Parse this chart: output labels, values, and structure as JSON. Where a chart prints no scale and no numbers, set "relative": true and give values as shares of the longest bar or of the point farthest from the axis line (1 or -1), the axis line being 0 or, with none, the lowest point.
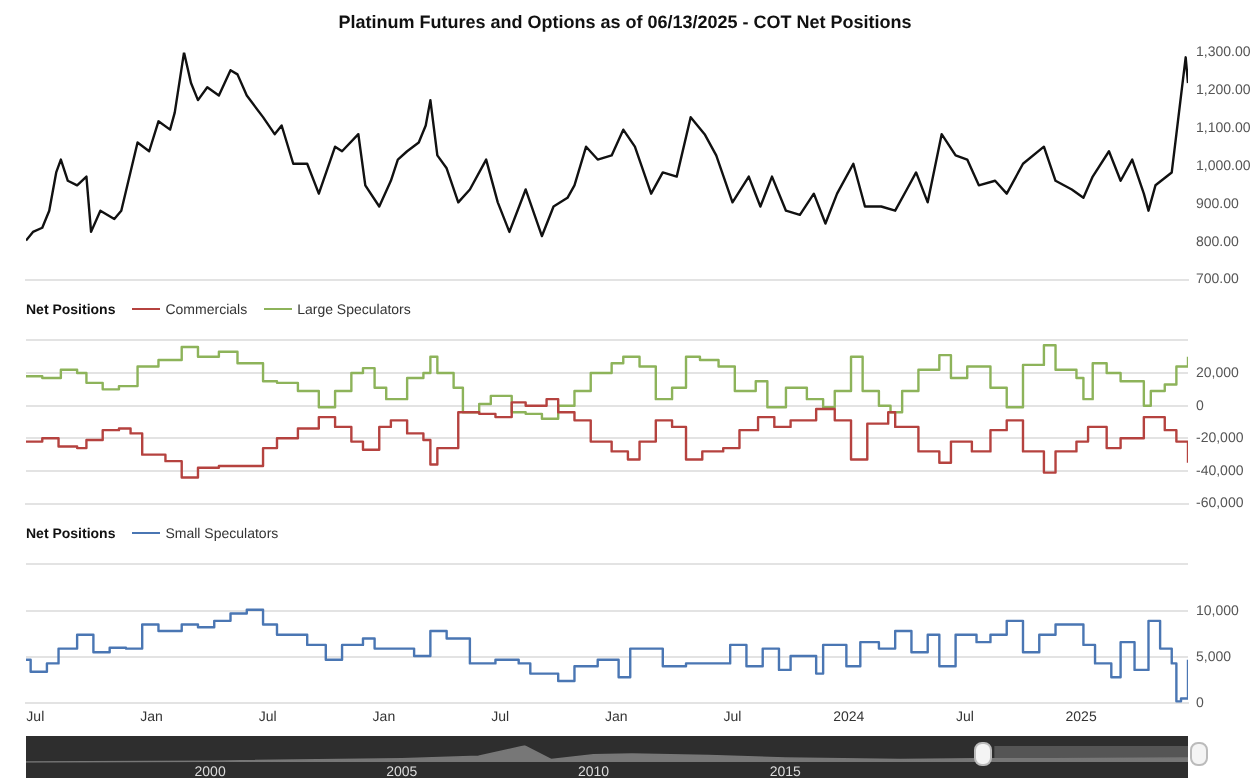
{
  "chart_data": [
    {
      "type": "line",
      "title": "Platinum Futures and Options as of 06/13/2025 - COT Net Positions",
      "color": "#111111",
      "x": [
        2020.46,
        2020.49,
        2020.53,
        2020.56,
        2020.59,
        2020.61,
        2020.64,
        2020.68,
        2020.72,
        2020.74,
        2020.78,
        2020.84,
        2020.87,
        2020.94,
        2020.99,
        2021.03,
        2021.08,
        2021.1,
        2021.14,
        2021.17,
        2021.2,
        2021.24,
        2021.29,
        2021.34,
        2021.37,
        2021.41,
        2021.48,
        2021.53,
        2021.56,
        2021.61,
        2021.67,
        2021.72,
        2021.79,
        2021.82,
        2021.89,
        2021.92,
        2021.98,
        2022.03,
        2022.06,
        2022.1,
        2022.15,
        2022.18,
        2022.2,
        2022.23,
        2022.27,
        2022.32,
        2022.37,
        2022.44,
        2022.49,
        2022.54,
        2022.61,
        2022.68,
        2022.73,
        2022.79,
        2022.82,
        2022.87,
        2022.92,
        2022.98,
        2023.03,
        2023.08,
        2023.15,
        2023.2,
        2023.26,
        2023.32,
        2023.38,
        2023.43,
        2023.5,
        2023.57,
        2023.62,
        2023.67,
        2023.73,
        2023.79,
        2023.85,
        2023.9,
        2023.95,
        2024.02,
        2024.07,
        2024.14,
        2024.2,
        2024.25,
        2024.29,
        2024.34,
        2024.4,
        2024.46,
        2024.51,
        2024.56,
        2024.63,
        2024.68,
        2024.75,
        2024.84,
        2024.89,
        2024.96,
        2025.01,
        2025.05,
        2025.12,
        2025.17,
        2025.22,
        2025.27,
        2025.29,
        2025.32,
        2025.39,
        2025.41,
        2025.43,
        2025.45,
        2025.46
      ],
      "values": [
        803,
        826,
        837,
        882,
        983,
        1017,
        961,
        949,
        972,
        826,
        882,
        860,
        882,
        1062,
        1039,
        1118,
        1096,
        1141,
        1300,
        1219,
        1174,
        1208,
        1186,
        1253,
        1242,
        1186,
        1129,
        1084,
        1107,
        1006,
        1006,
        927,
        1051,
        1039,
        1084,
        949,
        893,
        961,
        1017,
        1039,
        1062,
        1107,
        1174,
        1028,
        994,
        904,
        938,
        1017,
        904,
        826,
        938,
        815,
        893,
        916,
        949,
        1051,
        1017,
        1028,
        1096,
        1051,
        927,
        983,
        972,
        1129,
        1084,
        1028,
        904,
        972,
        893,
        972,
        882,
        871,
        927,
        848,
        927,
        1006,
        893,
        893,
        882,
        938,
        983,
        904,
        1084,
        1028,
        1017,
        949,
        961,
        927,
        1006,
        1051,
        961,
        938,
        916,
        972,
        1039,
        961,
        1017,
        927,
        882,
        949,
        983,
        1084,
        1186,
        1287,
        1219
      ],
      "xlim": [
        2020.46,
        2025.46
      ],
      "ylim": [
        700,
        1300
      ],
      "yticks": [
        {
          "value": 700,
          "label": "700.00"
        },
        {
          "value": 800,
          "label": "800.00"
        },
        {
          "value": 900,
          "label": "900.00"
        },
        {
          "value": 1000,
          "label": "1,000.00"
        },
        {
          "value": 1100,
          "label": "1,100.00"
        },
        {
          "value": 1200,
          "label": "1,200.00"
        },
        {
          "value": 1300,
          "label": "1,300.00"
        }
      ],
      "tick_labels": "y"
    },
    {
      "type": "step",
      "legend_title": "Net Positions",
      "legend": "top left",
      "grid": "y",
      "tick_labels": "y",
      "xlim": [
        2020.46,
        2025.46
      ],
      "ylim": [
        -60000,
        40000
      ],
      "yticks": [
        {
          "value": -60000,
          "label": "-60,000"
        },
        {
          "value": -40000,
          "label": "-40,000"
        },
        {
          "value": -20000,
          "label": "-20,000"
        },
        {
          "value": 0,
          "label": "0"
        },
        {
          "value": 20000,
          "label": "20,000"
        },
        {
          "value": 40000,
          "label": null
        }
      ],
      "series": [
        {
          "name": "Commercials",
          "color": "#b5423f",
          "x": [
            2020.46,
            2020.53,
            2020.6,
            2020.68,
            2020.72,
            2020.79,
            2020.86,
            2020.91,
            2020.96,
            2021.06,
            2021.13,
            2021.2,
            2021.29,
            2021.37,
            2021.48,
            2021.54,
            2021.63,
            2021.72,
            2021.79,
            2021.86,
            2021.91,
            2021.98,
            2022.03,
            2022.1,
            2022.17,
            2022.2,
            2022.23,
            2022.32,
            2022.41,
            2022.48,
            2022.55,
            2022.61,
            2022.7,
            2022.75,
            2022.82,
            2022.89,
            2022.98,
            2023.05,
            2023.1,
            2023.17,
            2023.24,
            2023.3,
            2023.37,
            2023.46,
            2023.53,
            2023.61,
            2023.68,
            2023.75,
            2023.86,
            2023.94,
            2024.01,
            2024.08,
            2024.17,
            2024.2,
            2024.3,
            2024.39,
            2024.44,
            2024.53,
            2024.61,
            2024.68,
            2024.75,
            2024.84,
            2024.89,
            2024.98,
            2025.03,
            2025.11,
            2025.17,
            2025.27,
            2025.36,
            2025.41,
            2025.46
          ],
          "values": [
            -22000,
            -20000,
            -25000,
            -26000,
            -21000,
            -15000,
            -14000,
            -17000,
            -30000,
            -34000,
            -44000,
            -38000,
            -37000,
            -37000,
            -26000,
            -20000,
            -14000,
            -7000,
            -13000,
            -22000,
            -27000,
            -13000,
            -9000,
            -17000,
            -21000,
            -36000,
            -26000,
            -4000,
            -5000,
            -7000,
            2000,
            0,
            4000,
            -4000,
            -9000,
            -22000,
            -28000,
            -33000,
            -22000,
            -9000,
            -13000,
            -33000,
            -28000,
            -26000,
            -15000,
            -7000,
            -13000,
            -9000,
            -2000,
            -9000,
            -33000,
            -11000,
            -4000,
            -13000,
            -28000,
            -35000,
            -22000,
            -28000,
            -15000,
            -9000,
            -28000,
            -41000,
            -28000,
            -22000,
            -13000,
            -26000,
            -20000,
            -7000,
            -15000,
            -22000,
            -35000
          ]
        },
        {
          "name": "Large Speculators",
          "color": "#8db35a",
          "x": [
            2020.46,
            2020.53,
            2020.61,
            2020.68,
            2020.72,
            2020.79,
            2020.86,
            2020.94,
            2021.03,
            2021.13,
            2021.2,
            2021.29,
            2021.37,
            2021.48,
            2021.54,
            2021.63,
            2021.72,
            2021.79,
            2021.86,
            2021.91,
            2021.96,
            2022.01,
            2022.1,
            2022.17,
            2022.2,
            2022.23,
            2022.3,
            2022.34,
            2022.41,
            2022.46,
            2022.55,
            2022.61,
            2022.68,
            2022.75,
            2022.82,
            2022.89,
            2022.98,
            2023.03,
            2023.1,
            2023.17,
            2023.24,
            2023.3,
            2023.36,
            2023.44,
            2023.51,
            2023.6,
            2023.65,
            2023.73,
            2023.82,
            2023.89,
            2023.94,
            2024.01,
            2024.06,
            2024.13,
            2024.18,
            2024.23,
            2024.3,
            2024.39,
            2024.44,
            2024.51,
            2024.61,
            2024.68,
            2024.75,
            2024.84,
            2024.89,
            2024.98,
            2025.01,
            2025.05,
            2025.11,
            2025.17,
            2025.27,
            2025.3,
            2025.36,
            2025.41,
            2025.46
          ],
          "values": [
            18000,
            17000,
            22000,
            20000,
            14000,
            10000,
            12000,
            24000,
            28000,
            36000,
            30000,
            33000,
            26000,
            15000,
            14000,
            9000,
            -1000,
            9000,
            20000,
            23000,
            11000,
            4000,
            17000,
            20000,
            30000,
            20000,
            11000,
            -4000,
            1000,
            6000,
            -4000,
            -5000,
            -8000,
            0,
            9000,
            20000,
            26000,
            30000,
            24000,
            4000,
            11000,
            30000,
            28000,
            24000,
            9000,
            15000,
            -1000,
            11000,
            4000,
            -1000,
            9000,
            30000,
            9000,
            0,
            -4000,
            9000,
            22000,
            31000,
            17000,
            24000,
            11000,
            -1000,
            25000,
            37000,
            22000,
            17000,
            4000,
            26000,
            20000,
            15000,
            0,
            9000,
            13000,
            24000,
            30000
          ]
        }
      ]
    },
    {
      "type": "step",
      "legend_title": "Net Positions",
      "legend": "top left",
      "grid": "y",
      "xlim": [
        2020.46,
        2025.46
      ],
      "ylim": [
        0,
        15000
      ],
      "xticks": [
        {
          "value": 2020.5,
          "label": "Jul"
        },
        {
          "value": 2021,
          "label": "Jan"
        },
        {
          "value": 2021.5,
          "label": "Jul"
        },
        {
          "value": 2022,
          "label": "Jan"
        },
        {
          "value": 2022.5,
          "label": "Jul"
        },
        {
          "value": 2023,
          "label": "Jan"
        },
        {
          "value": 2023.5,
          "label": "Jul"
        },
        2024,
        {
          "value": 2024.5,
          "label": "Jul"
        },
        2025
      ],
      "yticks": [
        0,
        {
          "value": 5000,
          "label": "5,000"
        },
        {
          "value": 10000,
          "label": "10,000"
        },
        {
          "value": 15000,
          "label": null
        }
      ],
      "series": [
        {
          "name": "Small Speculators",
          "color": "#4a76b3",
          "x": [
            2020.46,
            2020.48,
            2020.55,
            2020.6,
            2020.68,
            2020.75,
            2020.82,
            2020.89,
            2020.96,
            2021.03,
            2021.13,
            2021.2,
            2021.27,
            2021.34,
            2021.41,
            2021.48,
            2021.54,
            2021.61,
            2021.67,
            2021.75,
            2021.82,
            2021.91,
            2021.96,
            2022.06,
            2022.13,
            2022.2,
            2022.27,
            2022.37,
            2022.48,
            2022.58,
            2022.63,
            2022.75,
            2022.82,
            2022.92,
            2023.01,
            2023.06,
            2023.13,
            2023.2,
            2023.3,
            2023.41,
            2023.49,
            2023.56,
            2023.63,
            2023.7,
            2023.75,
            2023.86,
            2023.89,
            2023.99,
            2024.05,
            2024.13,
            2024.2,
            2024.27,
            2024.34,
            2024.39,
            2024.46,
            2024.55,
            2024.61,
            2024.68,
            2024.75,
            2024.82,
            2024.89,
            2024.98,
            2025.01,
            2025.06,
            2025.13,
            2025.17,
            2025.23,
            2025.29,
            2025.34,
            2025.39,
            2025.41,
            2025.43,
            2025.46
          ],
          "values": [
            4700,
            3400,
            4300,
            5900,
            7400,
            5500,
            6000,
            5900,
            8500,
            7800,
            8500,
            8200,
            8900,
            9700,
            10100,
            8500,
            7400,
            7400,
            6300,
            4700,
            6300,
            7000,
            5900,
            5900,
            5100,
            7800,
            7000,
            4300,
            4700,
            4300,
            3200,
            2400,
            4000,
            4700,
            2800,
            5900,
            5900,
            4000,
            4300,
            4300,
            6300,
            4000,
            5900,
            3600,
            5100,
            3200,
            6300,
            4000,
            6600,
            5900,
            7800,
            5500,
            7400,
            4000,
            7400,
            6600,
            7400,
            8900,
            5500,
            7400,
            8500,
            8500,
            6300,
            4300,
            2800,
            6600,
            3600,
            8900,
            5900,
            4300,
            200,
            500,
            4700
          ]
        }
      ]
    },
    {
      "type": "area",
      "relative": true,
      "color": "#777777",
      "tick_labels": "x",
      "x": [
        1995.2,
        2000,
        2005,
        2007,
        2008.2,
        2008.9,
        2010,
        2011,
        2013,
        2015,
        2018,
        2020,
        2022,
        2025.5
      ],
      "values": [
        0,
        0.05,
        0.2,
        0.35,
        1,
        0.15,
        0.45,
        0.5,
        0.4,
        0.25,
        0.15,
        0.2,
        0.2,
        0.25
      ],
      "xlim": [
        1995.2,
        2025.5
      ],
      "xticks": [
        2000,
        2005,
        2010,
        2015
      ],
      "bands": [
        {
          "axis": "x",
          "from": 2020.45,
          "to": 2025.5,
          "color": "#555555"
        }
      ]
    }
  ]
}
